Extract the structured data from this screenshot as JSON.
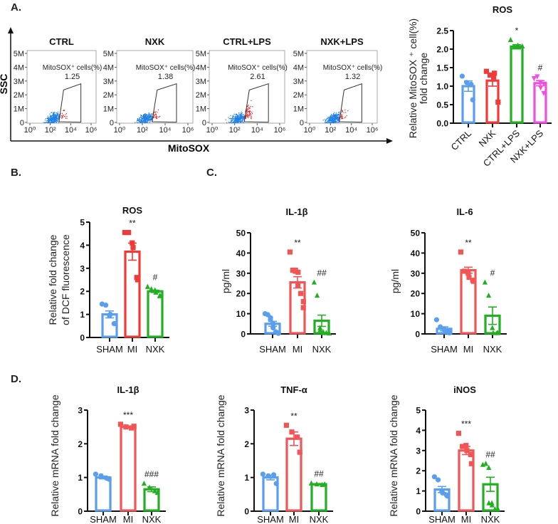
{
  "panels": {
    "a": "A.",
    "b": "B.",
    "c": "C.",
    "d": "D."
  },
  "flow": {
    "y_axis_label": "SSC",
    "x_axis_label": "MitoSOX",
    "gate_label": "MitoSOX⁺ cells(%)",
    "y_ticks": [
      "0",
      "1M",
      "2M",
      "3M",
      "4M",
      "5M"
    ],
    "x_ticks": [
      "10⁰",
      "10²",
      "10⁴",
      "10⁶"
    ],
    "plots": [
      {
        "title": "CTRL",
        "percent": "1.25"
      },
      {
        "title": "NXK",
        "percent": "1.38"
      },
      {
        "title": "CTRL+LPS",
        "percent": "2.61"
      },
      {
        "title": "NXK+LPS",
        "percent": "1.32"
      }
    ]
  },
  "colors": {
    "blue": "#5a9ef0",
    "red": "#f03a3a",
    "red_light": "#f25555",
    "green": "#22b022",
    "magenta": "#f04ee0",
    "axis": "#111111"
  },
  "chart_data": [
    {
      "id": "a_ros",
      "type": "bar",
      "title": "ROS",
      "ylabel": [
        "Relative MitoSOX ⁺ cell(%)",
        "fold change"
      ],
      "ylim": [
        0,
        2.5
      ],
      "yticks": [
        "0.0",
        "0.5",
        "1.0",
        "1.5",
        "2.0",
        "2.5"
      ],
      "categories": [
        "CTRL",
        "NXK",
        "CTRL+LPS",
        "NXK+LPS"
      ],
      "series": [
        {
          "name": "CTRL",
          "color": "#5a9ef0",
          "marker": "circle",
          "mean": 1.0,
          "sem": 0.14,
          "points": [
            1.27,
            1.1,
            1.05,
            0.63
          ],
          "annotation": ""
        },
        {
          "name": "NXK",
          "color": "#f03a3a",
          "marker": "square",
          "mean": 1.15,
          "sem": 0.15,
          "points": [
            1.4,
            1.3,
            1.25,
            1.35,
            0.57
          ],
          "annotation": ""
        },
        {
          "name": "CTRL+LPS",
          "color": "#22b022",
          "marker": "triangle",
          "mean": 2.07,
          "sem": 0.05,
          "points": [
            2.25,
            2.05,
            2.1,
            2.05,
            2.08
          ],
          "annotation": "*"
        },
        {
          "name": "NXK+LPS",
          "color": "#f04ee0",
          "marker": "triangle-down",
          "mean": 1.08,
          "sem": 0.07,
          "points": [
            1.2,
            1.25,
            1.1,
            0.95,
            0.8,
            1.05
          ],
          "annotation": "#"
        }
      ]
    },
    {
      "id": "b_ros",
      "type": "bar",
      "title": "ROS",
      "ylabel": [
        "Relative fold change",
        "of DCF fluorescence"
      ],
      "ylim": [
        0,
        5
      ],
      "yticks": [
        "0",
        "1",
        "2",
        "3",
        "4",
        "5"
      ],
      "categories": [
        "SHAM",
        "MI",
        "NXK"
      ],
      "series": [
        {
          "name": "SHAM",
          "color": "#5a9ef0",
          "marker": "circle",
          "mean": 1.0,
          "sem": 0.15,
          "points": [
            1.45,
            1.4,
            0.95,
            1.0,
            0.6,
            0.6
          ],
          "annotation": ""
        },
        {
          "name": "MI",
          "color": "#f03a3a",
          "marker": "square",
          "mean": 3.72,
          "sem": 0.37,
          "points": [
            4.55,
            4.55,
            4.1,
            3.9,
            2.6,
            2.5
          ],
          "annotation": "**"
        },
        {
          "name": "NXK",
          "color": "#22b022",
          "marker": "triangle",
          "mean": 2.0,
          "sem": 0.05,
          "points": [
            2.2,
            2.1,
            2.05,
            1.95,
            1.8,
            1.8
          ],
          "annotation": "#"
        }
      ]
    },
    {
      "id": "c_il1b",
      "type": "bar",
      "title": "IL-1β",
      "ylabel": [
        "pg/ml"
      ],
      "ylim": [
        0,
        50
      ],
      "yticks": [
        "0",
        "10",
        "20",
        "30",
        "40",
        "50"
      ],
      "categories": [
        "SHAM",
        "MI",
        "NXK"
      ],
      "series": [
        {
          "name": "SHAM",
          "color": "#5a9ef0",
          "marker": "circle",
          "mean": 5.0,
          "sem": 1.2,
          "points": [
            10,
            9.5,
            8,
            7,
            5,
            3,
            1,
            0.5,
            0.3
          ],
          "annotation": ""
        },
        {
          "name": "MI",
          "color": "#f25555",
          "marker": "square",
          "mean": 25.5,
          "sem": 2.8,
          "points": [
            40.5,
            31.5,
            31.5,
            31,
            30.5,
            24,
            20,
            16,
            13
          ],
          "annotation": "**"
        },
        {
          "name": "NXK",
          "color": "#22b022",
          "marker": "triangle",
          "mean": 6.5,
          "sem": 2.8,
          "points": [
            25.5,
            19,
            3,
            2,
            1,
            0.5,
            0.5,
            0.3
          ],
          "annotation": "##"
        }
      ]
    },
    {
      "id": "c_il6",
      "type": "bar",
      "title": "IL-6",
      "ylabel": [
        "pg/ml"
      ],
      "ylim": [
        0,
        50
      ],
      "yticks": [
        "0",
        "10",
        "20",
        "30",
        "40",
        "50"
      ],
      "categories": [
        "SHAM",
        "MI",
        "NXK"
      ],
      "series": [
        {
          "name": "SHAM",
          "color": "#5a9ef0",
          "marker": "circle",
          "mean": 2.5,
          "sem": 1.0,
          "points": [
            7,
            3.5,
            2.5,
            1.5,
            1,
            0.5
          ],
          "annotation": ""
        },
        {
          "name": "MI",
          "color": "#f25555",
          "marker": "square",
          "mean": 31.5,
          "sem": 1.5,
          "points": [
            40.5,
            31,
            30,
            28,
            26.5,
            26
          ],
          "annotation": "**"
        },
        {
          "name": "NXK",
          "color": "#22b022",
          "marker": "triangle",
          "mean": 9.0,
          "sem": 4.3,
          "points": [
            25.5,
            19,
            3,
            0.5,
            0.5,
            0.5
          ],
          "annotation": "#"
        }
      ]
    },
    {
      "id": "d_il1b",
      "type": "bar",
      "title": "IL-1β",
      "ylabel": [
        "Relative mRNA fold change"
      ],
      "ylim": [
        0,
        3
      ],
      "yticks": [
        "0",
        "1",
        "2",
        "3"
      ],
      "categories": [
        "SHAM",
        "MI",
        "NXK"
      ],
      "series": [
        {
          "name": "SHAM",
          "color": "#5a9ef0",
          "marker": "circle",
          "mean": 1.0,
          "sem": 0.04,
          "points": [
            1.1,
            1.05,
            0.98,
            0.95
          ],
          "annotation": ""
        },
        {
          "name": "MI",
          "color": "#f25555",
          "marker": "square",
          "mean": 2.5,
          "sem": 0.03,
          "points": [
            2.58,
            2.5,
            2.47,
            2.52
          ],
          "annotation": "***"
        },
        {
          "name": "NXK",
          "color": "#22b022",
          "marker": "triangle",
          "mean": 0.65,
          "sem": 0.07,
          "points": [
            0.82,
            0.7,
            0.6,
            0.55
          ],
          "annotation": "###"
        }
      ]
    },
    {
      "id": "d_tnfa",
      "type": "bar",
      "title": "TNF-α",
      "ylabel": [
        "Relative mRNA fold change"
      ],
      "ylim": [
        0,
        3
      ],
      "yticks": [
        "0",
        "1",
        "2",
        "3"
      ],
      "categories": [
        "SHAM",
        "MI",
        "NXK"
      ],
      "series": [
        {
          "name": "SHAM",
          "color": "#5a9ef0",
          "marker": "circle",
          "mean": 1.0,
          "sem": 0.07,
          "points": [
            1.1,
            1.05,
            1.08,
            0.82
          ],
          "annotation": ""
        },
        {
          "name": "MI",
          "color": "#f25555",
          "marker": "square",
          "mean": 2.15,
          "sem": 0.2,
          "points": [
            2.55,
            2.35,
            2.2,
            1.75
          ],
          "annotation": "**"
        },
        {
          "name": "NXK",
          "color": "#22b022",
          "marker": "triangle",
          "mean": 0.8,
          "sem": 0.02,
          "points": [
            0.83,
            0.8,
            0.78,
            0.8
          ],
          "annotation": "##"
        }
      ]
    },
    {
      "id": "d_inos",
      "type": "bar",
      "title": "iNOS",
      "ylabel": [
        "Relative mRNA fold change"
      ],
      "ylim": [
        0,
        5
      ],
      "yticks": [
        "0",
        "1",
        "2",
        "3",
        "4",
        "5"
      ],
      "categories": [
        "SHAM",
        "MI",
        "NXK"
      ],
      "series": [
        {
          "name": "SHAM",
          "color": "#5a9ef0",
          "marker": "circle",
          "mean": 1.07,
          "sem": 0.15,
          "points": [
            1.7,
            1.55,
            1.0,
            0.9,
            0.8,
            0.75
          ],
          "annotation": ""
        },
        {
          "name": "MI",
          "color": "#f25555",
          "marker": "square",
          "mean": 3.0,
          "sem": 0.2,
          "points": [
            3.85,
            3.2,
            3.25,
            3.0,
            2.8,
            2.35
          ],
          "annotation": "***"
        },
        {
          "name": "NXK",
          "color": "#22b022",
          "marker": "triangle",
          "mean": 1.33,
          "sem": 0.35,
          "points": [
            2.3,
            2.35,
            2.15,
            0.4,
            0.4,
            0.3,
            0.1,
            0.1
          ],
          "annotation": "##"
        }
      ]
    }
  ]
}
